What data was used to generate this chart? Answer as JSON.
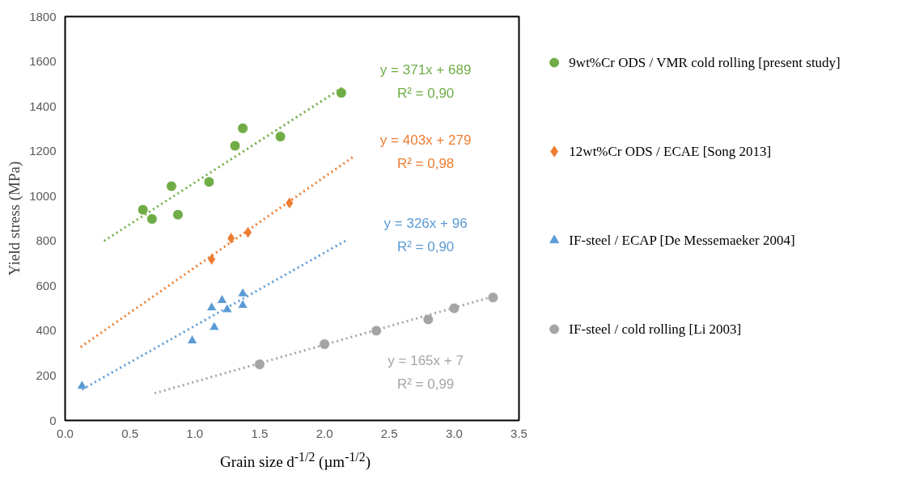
{
  "chart_data": {
    "type": "scatter",
    "xlabel": "Grain size d$^{-1/2}$ (µm$^{-1/2}$)",
    "ylabel": "Yield stress (MPa)",
    "xlim": [
      0,
      3.5
    ],
    "ylim": [
      0,
      1800
    ],
    "xticks": [
      {
        "value": 0,
        "label": "0.0"
      },
      0.5,
      {
        "value": 1,
        "label": "1.0"
      },
      1.5,
      {
        "value": 2,
        "label": "2.0"
      },
      2.5,
      {
        "value": 3,
        "label": "3.0"
      },
      3.5
    ],
    "yticks": [
      0,
      200,
      400,
      600,
      800,
      1000,
      1200,
      1400,
      1600,
      1800
    ],
    "grid": false,
    "legend": "right",
    "series": [
      {
        "name": "9wt%Cr ODS / VMR cold rolling [present study]",
        "color": "#70ad47",
        "marker": "circle",
        "x": [
          0.6,
          0.67,
          0.82,
          0.87,
          1.11,
          1.31,
          1.37,
          1.66,
          2.13
        ],
        "values": [
          939,
          898,
          1044,
          917,
          1063,
          1224,
          1302,
          1265,
          1460
        ]
      },
      {
        "name": "12wt%Cr ODS / ECAE [Song 2013]",
        "color": "#ed7d31",
        "marker": "diamond",
        "x": [
          1.13,
          1.28,
          1.41,
          1.73
        ],
        "values": [
          718,
          812,
          838,
          969
        ]
      },
      {
        "name": "IF-steel / ECAP [De Messemaeker 2004]",
        "color": "#5b9bd5",
        "marker": "triangle",
        "x": [
          0.13,
          0.98,
          1.15,
          1.13,
          1.21,
          1.25,
          1.37,
          1.37
        ],
        "values": [
          153,
          355,
          415,
          502,
          535,
          494,
          565,
          513
        ]
      },
      {
        "name": "IF-steel / cold rolling [Li 2003]",
        "color": "#a5a5a5",
        "marker": "circle",
        "x": [
          1.5,
          2.0,
          2.4,
          2.8,
          3.0,
          3.3
        ],
        "values": [
          250,
          340,
          400,
          450,
          500,
          548
        ]
      },
      {
        "type": "line",
        "line_style": "dotted",
        "color": "#70ad47",
        "x": [
          0.3,
          2.15
        ],
        "values": [
          800,
          1487
        ]
      },
      {
        "type": "line",
        "line_style": "dotted",
        "color": "#ed7d31",
        "x": [
          0.12,
          2.22
        ],
        "values": [
          327,
          1174
        ]
      },
      {
        "type": "line",
        "line_style": "dotted",
        "color": "#5b9bd5",
        "x": [
          0.13,
          2.17
        ],
        "values": [
          138,
          803
        ]
      },
      {
        "type": "line",
        "line_style": "dotted",
        "color": "#a5a5a5",
        "x": [
          0.69,
          3.3
        ],
        "values": [
          121,
          552
        ]
      }
    ],
    "annotations": [
      "y = 371x + 689",
      "R² = 0,90",
      "y = 403x + 279",
      "R² = 0,98",
      "y = 326x + 96",
      "R² = 0,90",
      "y = 165x + 7",
      "R² = 0,99"
    ]
  }
}
